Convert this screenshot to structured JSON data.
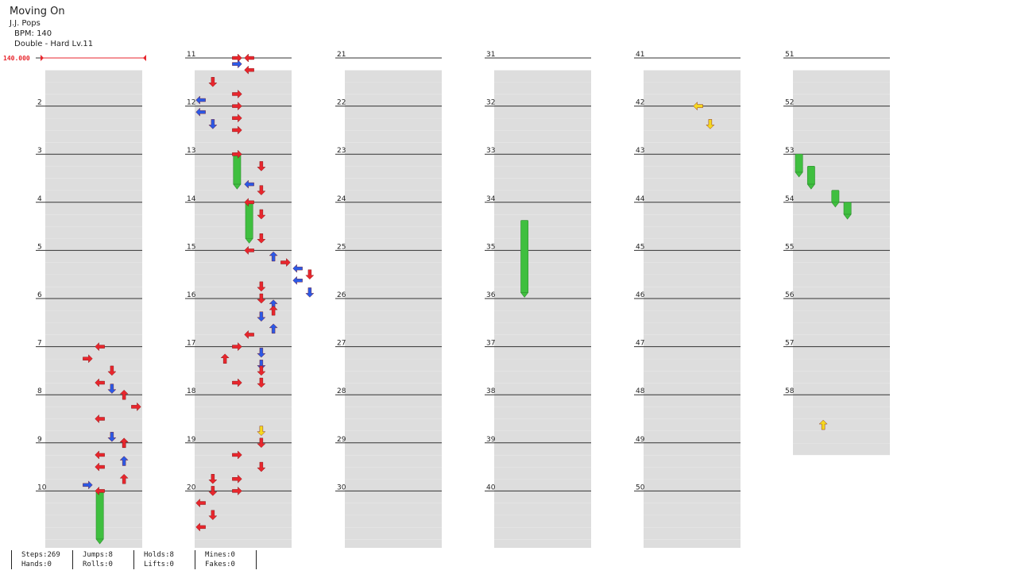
{
  "song": {
    "title": "Moving On",
    "artist": "J.J. Pops",
    "bpm_text": "BPM: 140",
    "difficulty_text": "Double - Hard Lv.11"
  },
  "bpm_marker": "140.000",
  "stats": {
    "steps": "Steps:269",
    "hands": "Hands:0",
    "jumps": "Jumps:8",
    "rolls": "Rolls:0",
    "holds": "Holds:8",
    "lifts": "Lifts:0",
    "mines": "Mines:0",
    "fakes": "Fakes:0"
  },
  "colors": {
    "quarter_red": "#e8262d",
    "eighth_blue": "#2b59e6",
    "sixteenth_yellow": "#f5d81e",
    "hold_green": "#3fbf3f",
    "row_shade": "#dddddd"
  },
  "measure_labels": [
    "",
    "2",
    "3",
    "4",
    "5",
    "6",
    "7",
    "8",
    "9",
    "10",
    "11",
    "12",
    "13",
    "14",
    "15",
    "16",
    "17",
    "18",
    "19",
    "20",
    "21",
    "22",
    "23",
    "24",
    "25",
    "26",
    "27",
    "28",
    "29",
    "30",
    "31",
    "32",
    "33",
    "34",
    "35",
    "36",
    "37",
    "38",
    "39",
    "40",
    "41",
    "42",
    "43",
    "44",
    "45",
    "46",
    "47",
    "48",
    "49",
    "50",
    "51",
    "52",
    "53",
    "54",
    "55",
    "56",
    "57",
    "58"
  ],
  "chart_data": {
    "type": "step-chart",
    "style": "doubles",
    "columns_per_page": 10,
    "measure_count": 58,
    "note_legend": {
      "red": "quarter",
      "blue": "eighth",
      "yellow": "sixteenth",
      "green": "hold"
    },
    "notes": [
      {
        "t": 6.0,
        "lane": 4
      },
      {
        "t": 6.25,
        "lane": 3
      },
      {
        "t": 6.5,
        "lane": 5
      },
      {
        "t": 6.75,
        "lane": 4
      },
      {
        "t": 6.875,
        "lane": 5
      },
      {
        "t": 7.0,
        "lane": 6
      },
      {
        "t": 7.25,
        "lane": 7
      },
      {
        "t": 7.5,
        "lane": 4
      },
      {
        "t": 7.875,
        "lane": 5
      },
      {
        "t": 8.0,
        "lane": 6
      },
      {
        "t": 8.0,
        "lane": 6
      },
      {
        "t": 8.25,
        "lane": 4
      },
      {
        "t": 8.375,
        "lane": 6
      },
      {
        "t": 8.5,
        "lane": 4
      },
      {
        "t": 8.75,
        "lane": 6
      },
      {
        "t": 8.875,
        "lane": 3
      },
      {
        "t": 9.0,
        "lane": 4
      },
      {
        "t": 10.0,
        "lane": 3
      },
      {
        "t": 10.0,
        "lane": 4
      },
      {
        "t": 10.125,
        "lane": 3
      },
      {
        "t": 10.25,
        "lane": 4
      },
      {
        "t": 10.5,
        "lane": 1
      },
      {
        "t": 10.75,
        "lane": 3
      },
      {
        "t": 10.875,
        "lane": 0
      },
      {
        "t": 11.0,
        "lane": 3
      },
      {
        "t": 11.125,
        "lane": 0
      },
      {
        "t": 11.25,
        "lane": 3
      },
      {
        "t": 11.375,
        "lane": 1
      },
      {
        "t": 11.5,
        "lane": 3
      },
      {
        "t": 12.0,
        "lane": 3
      },
      {
        "t": 12.25,
        "lane": 5
      },
      {
        "t": 12.625,
        "lane": 4
      },
      {
        "t": 12.75,
        "lane": 5
      },
      {
        "t": 13.0,
        "lane": 4
      },
      {
        "t": 13.25,
        "lane": 5
      },
      {
        "t": 13.75,
        "lane": 5
      },
      {
        "t": 14.0,
        "lane": 4
      },
      {
        "t": 14.125,
        "lane": 6
      },
      {
        "t": 14.25,
        "lane": 7
      },
      {
        "t": 14.375,
        "lane": 8
      },
      {
        "t": 14.5,
        "lane": 9
      },
      {
        "t": 14.625,
        "lane": 8
      },
      {
        "t": 14.75,
        "lane": 5
      },
      {
        "t": 14.875,
        "lane": 9
      },
      {
        "t": 15.0,
        "lane": 5
      },
      {
        "t": 15.125,
        "lane": 6
      },
      {
        "t": 15.25,
        "lane": 6
      },
      {
        "t": 15.375,
        "lane": 5
      },
      {
        "t": 15.625,
        "lane": 6
      },
      {
        "t": 15.75,
        "lane": 4
      },
      {
        "t": 16.0,
        "lane": 3
      },
      {
        "t": 16.125,
        "lane": 5
      },
      {
        "t": 16.25,
        "lane": 2
      },
      {
        "t": 16.375,
        "lane": 5
      },
      {
        "t": 16.5,
        "lane": 5
      },
      {
        "t": 16.75,
        "lane": 3
      },
      {
        "t": 16.75,
        "lane": 5
      },
      {
        "t": 18.0,
        "lane": 5
      },
      {
        "t": 18.25,
        "lane": 3
      },
      {
        "t": 18.5,
        "lane": 5
      },
      {
        "t": 18.75,
        "lane": 1
      },
      {
        "t": 18.75,
        "lane": 3
      },
      {
        "t": 19.0,
        "lane": 1
      },
      {
        "t": 19.0,
        "lane": 3
      },
      {
        "t": 19.25,
        "lane": 0
      },
      {
        "t": 19.5,
        "lane": 1
      },
      {
        "t": 19.75,
        "lane": 0
      }
    ],
    "yellow_notes": [
      {
        "t": 17.75,
        "lane": 5
      },
      {
        "t": 41.0,
        "lane": 4
      },
      {
        "t": 41.375,
        "lane": 5
      },
      {
        "t": 57.625,
        "lane": 2
      }
    ],
    "holds": [
      {
        "start": 9.0,
        "end": 10.0,
        "lane": 4
      },
      {
        "start": 12.0,
        "end": 12.625,
        "lane": 3
      },
      {
        "start": 13.0,
        "end": 13.75,
        "lane": 4
      },
      {
        "start": 33.375,
        "end": 34.875,
        "lane": 2
      },
      {
        "start": 52.0,
        "end": 52.375,
        "lane": 0
      },
      {
        "start": 52.25,
        "end": 52.625,
        "lane": 1
      },
      {
        "start": 52.75,
        "end": 53.0,
        "lane": 3
      },
      {
        "start": 53.0,
        "end": 53.25,
        "lane": 4
      }
    ]
  }
}
